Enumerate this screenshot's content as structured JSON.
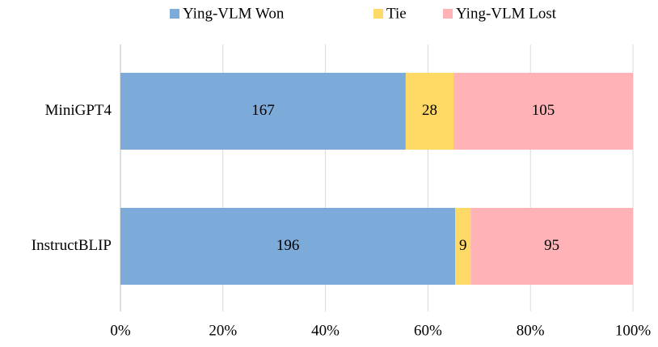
{
  "chart_data": {
    "type": "stacked_percent_bar",
    "categories": [
      "MiniGPT4",
      "InstructBLIP"
    ],
    "series": [
      {
        "name": "Ying-VLM Won",
        "color": "#7dabd9",
        "values": [
          167,
          196
        ]
      },
      {
        "name": "Tie",
        "color": "#ffd966",
        "values": [
          28,
          9
        ]
      },
      {
        "name": "Ying-VLM Lost",
        "color": "#ffb3b7",
        "values": [
          105,
          95
        ]
      }
    ],
    "xlim": [
      0,
      100
    ],
    "xticks": [
      {
        "value": 0,
        "label": "0%"
      },
      {
        "value": 20,
        "label": "20%"
      },
      {
        "value": 40,
        "label": "40%"
      },
      {
        "value": 60,
        "label": "60%"
      },
      {
        "value": 80,
        "label": "80%"
      },
      {
        "value": 100,
        "label": "100%"
      }
    ],
    "grid": true,
    "legend": "top"
  }
}
